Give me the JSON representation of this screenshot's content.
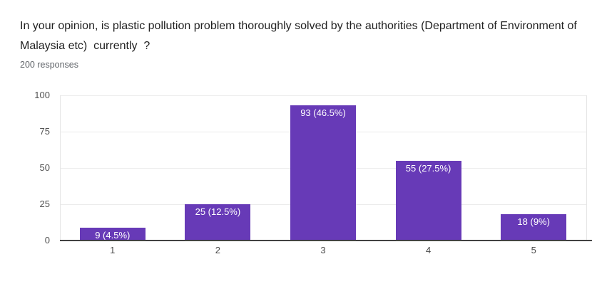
{
  "header": {
    "title": "In your opinion, is plastic pollution problem thoroughly solved by the authorities (Department of Environment of Malaysia etc)  currently  ?",
    "responses_label": "200 responses"
  },
  "chart_data": {
    "type": "bar",
    "title": "In your opinion, is plastic pollution problem thoroughly solved by the authorities (Department of Environment of Malaysia etc) currently ?",
    "subtitle": "200 responses",
    "categories": [
      "1",
      "2",
      "3",
      "4",
      "5"
    ],
    "values": [
      9,
      25,
      93,
      55,
      18
    ],
    "bar_labels": [
      "9 (4.5%)",
      "25 (12.5%)",
      "93 (46.5%)",
      "55 (27.5%)",
      "18 (9%)"
    ],
    "percentages": [
      4.5,
      12.5,
      46.5,
      27.5,
      9
    ],
    "total_responses": 200,
    "xlabel": "",
    "ylabel": "",
    "ylim": [
      0,
      100
    ],
    "yticks": [
      0,
      25,
      50,
      75,
      100
    ],
    "grid": true,
    "legend": "none"
  },
  "colors": {
    "background": "#ffffff",
    "bar": "#673AB7",
    "gridline": "#ebebeb",
    "plot_edge": "#e6e6e6",
    "axis_line": "#424242",
    "title_text": "#212121",
    "secondary_text": "#5f6368",
    "tick_text": "#4f4f4f",
    "bar_label_text": "#ffffff"
  }
}
